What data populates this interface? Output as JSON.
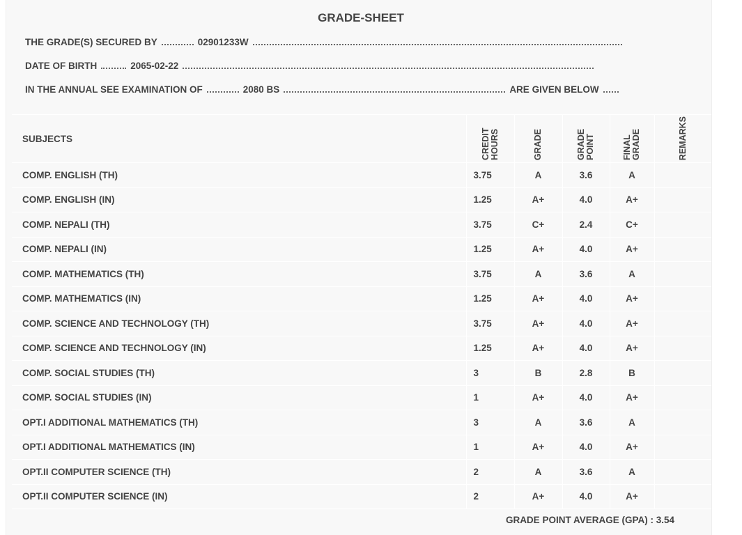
{
  "header": {
    "title": "GRADE-SHEET"
  },
  "info": {
    "secured_by": {
      "label": "THE GRADE(S) SECURED BY",
      "value": "02901233W"
    },
    "date_of_birth": {
      "label": "DATE OF BIRTH",
      "value": "2065-02-22"
    },
    "examination": {
      "label": "IN THE ANNUAL SEE EXAMINATION OF",
      "value": "2080 BS",
      "suffix": "ARE GIVEN BELOW"
    }
  },
  "table": {
    "columns": [
      "SUBJECTS",
      "CREDIT HOURS",
      "GRADE",
      "GRADE POINT",
      "FINAL GRADE",
      "REMARKS"
    ],
    "rows": [
      [
        "COMP. ENGLISH (TH)",
        "3.75",
        "A",
        "3.6",
        "A"
      ],
      [
        "COMP. ENGLISH (IN)",
        "1.25",
        "A+",
        "4.0",
        "A+"
      ],
      [
        "COMP. NEPALI (TH)",
        "3.75",
        "C+",
        "2.4",
        "C+"
      ],
      [
        "COMP. NEPALI (IN)",
        "1.25",
        "A+",
        "4.0",
        "A+"
      ],
      [
        "COMP. MATHEMATICS (TH)",
        "3.75",
        "A",
        "3.6",
        "A"
      ],
      [
        "COMP. MATHEMATICS (IN)",
        "1.25",
        "A+",
        "4.0",
        "A+"
      ],
      [
        "COMP. SCIENCE AND TECHNOLOGY (TH)",
        "3.75",
        "A+",
        "4.0",
        "A+"
      ],
      [
        "COMP. SCIENCE AND TECHNOLOGY (IN)",
        "1.25",
        "A+",
        "4.0",
        "A+"
      ],
      [
        "COMP. SOCIAL STUDIES (TH)",
        "3",
        "B",
        "2.8",
        "B"
      ],
      [
        "COMP. SOCIAL STUDIES (IN)",
        "1",
        "A+",
        "4.0",
        "A+"
      ],
      [
        "OPT.I ADDITIONAL MATHEMATICS (TH)",
        "3",
        "A",
        "3.6",
        "A"
      ],
      [
        "OPT.I ADDITIONAL MATHEMATICS (IN)",
        "1",
        "A+",
        "4.0",
        "A+"
      ],
      [
        "OPT.II COMPUTER SCIENCE (TH)",
        "2",
        "A",
        "3.6",
        "A"
      ],
      [
        "OPT.II COMPUTER SCIENCE (IN)",
        "2",
        "A+",
        "4.0",
        "A+"
      ]
    ]
  },
  "footer": {
    "gpa_label": "GRADE POINT AVERAGE (GPA) :",
    "gpa": "3.54"
  }
}
